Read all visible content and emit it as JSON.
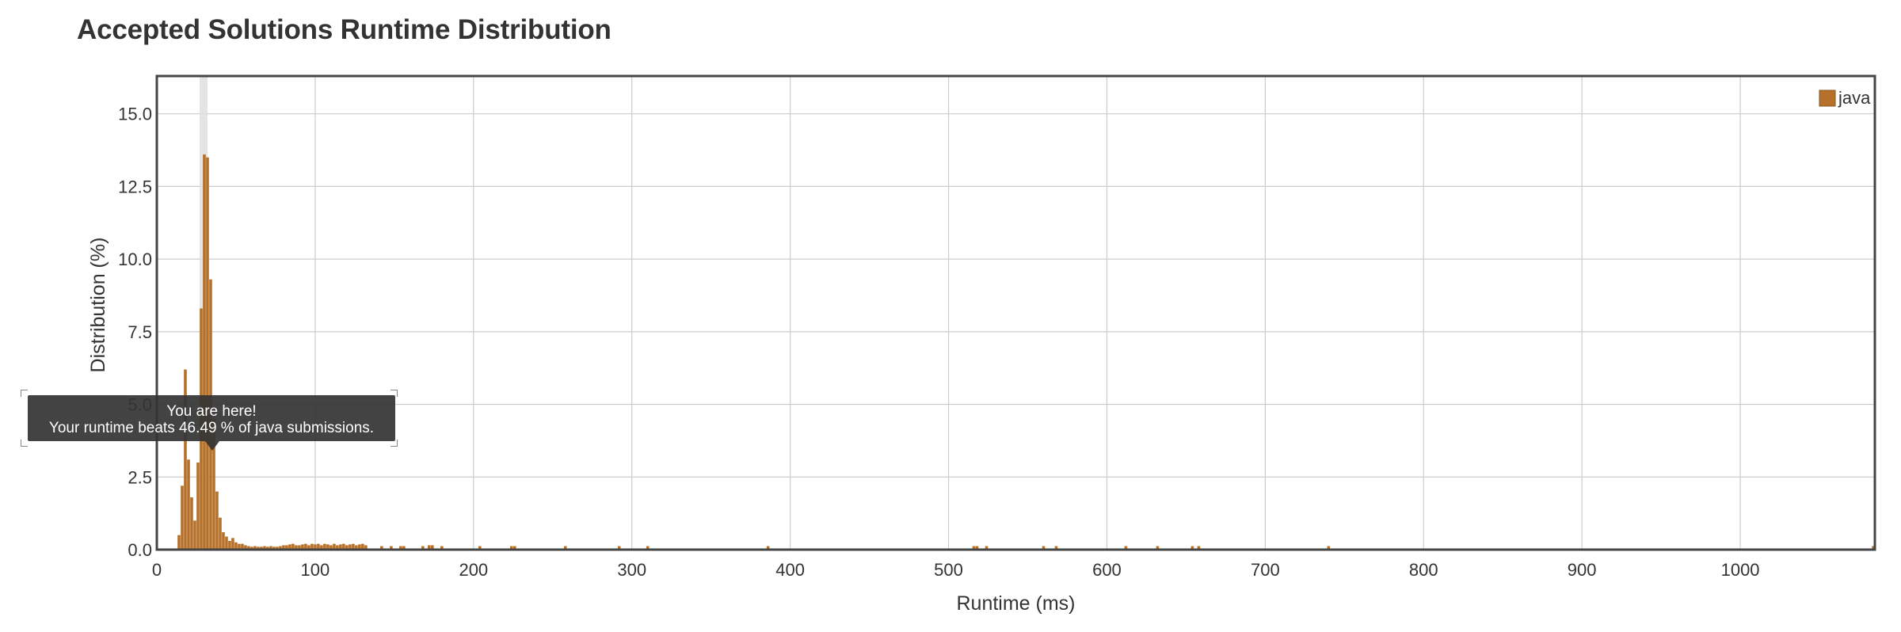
{
  "title": "Accepted Solutions Runtime Distribution",
  "colors": {
    "bar": "#b5702a",
    "grid": "#cccccc",
    "axis": "#444444",
    "highlight": "#dddddd"
  },
  "tooltip": {
    "line1": "You are here!",
    "line2": "Your runtime beats 46.49 % of java submissions."
  },
  "chart_data": {
    "type": "bar",
    "title": "Accepted Solutions Runtime Distribution",
    "xlabel": "Runtime (ms)",
    "ylabel": "Distribution (%)",
    "xlim": [
      0,
      1085
    ],
    "ylim": [
      0,
      16.3
    ],
    "xticks": [
      0,
      100,
      200,
      300,
      400,
      500,
      600,
      700,
      800,
      900,
      1000
    ],
    "yticks": [
      0.0,
      2.5,
      5.0,
      7.5,
      10.0,
      12.5,
      15.0
    ],
    "ytick_labels": [
      "0.0",
      "2.5",
      "5.0",
      "7.5",
      "10.0",
      "12.5",
      "15.0"
    ],
    "grid": true,
    "legend": {
      "position": "top-right",
      "entries": [
        "java"
      ]
    },
    "highlight_runtime": 30,
    "bin_width": 2,
    "series": [
      {
        "name": "java",
        "x": [
          14,
          16,
          18,
          20,
          22,
          24,
          26,
          28,
          30,
          32,
          34,
          36,
          38,
          40,
          42,
          44,
          46,
          48,
          50,
          52,
          54,
          56,
          58,
          60,
          62,
          64,
          66,
          68,
          70,
          72,
          74,
          76,
          78,
          80,
          82,
          84,
          86,
          88,
          90,
          92,
          94,
          96,
          98,
          100,
          102,
          104,
          106,
          108,
          110,
          112,
          114,
          116,
          118,
          120,
          122,
          124,
          126,
          128,
          130,
          132,
          142,
          148,
          154,
          156,
          168,
          172,
          174,
          180,
          204,
          224,
          226,
          258,
          292,
          310,
          386,
          516,
          518,
          524,
          560,
          568,
          612,
          632,
          654,
          658,
          740,
          1084
        ],
        "values": [
          0.5,
          2.2,
          6.2,
          3.1,
          1.8,
          1.0,
          3.0,
          8.3,
          13.6,
          13.5,
          9.3,
          4.5,
          2.0,
          1.1,
          0.6,
          0.45,
          0.3,
          0.4,
          0.25,
          0.2,
          0.2,
          0.15,
          0.12,
          0.1,
          0.12,
          0.1,
          0.1,
          0.12,
          0.1,
          0.12,
          0.1,
          0.1,
          0.12,
          0.15,
          0.15,
          0.18,
          0.2,
          0.15,
          0.15,
          0.18,
          0.2,
          0.15,
          0.2,
          0.18,
          0.2,
          0.15,
          0.2,
          0.18,
          0.15,
          0.2,
          0.15,
          0.18,
          0.2,
          0.15,
          0.18,
          0.2,
          0.15,
          0.18,
          0.2,
          0.15,
          0.12,
          0.12,
          0.12,
          0.12,
          0.12,
          0.15,
          0.15,
          0.12,
          0.12,
          0.12,
          0.12,
          0.12,
          0.12,
          0.12,
          0.12,
          0.12,
          0.12,
          0.12,
          0.12,
          0.12,
          0.12,
          0.12,
          0.12,
          0.12,
          0.12,
          0.12
        ]
      }
    ]
  }
}
